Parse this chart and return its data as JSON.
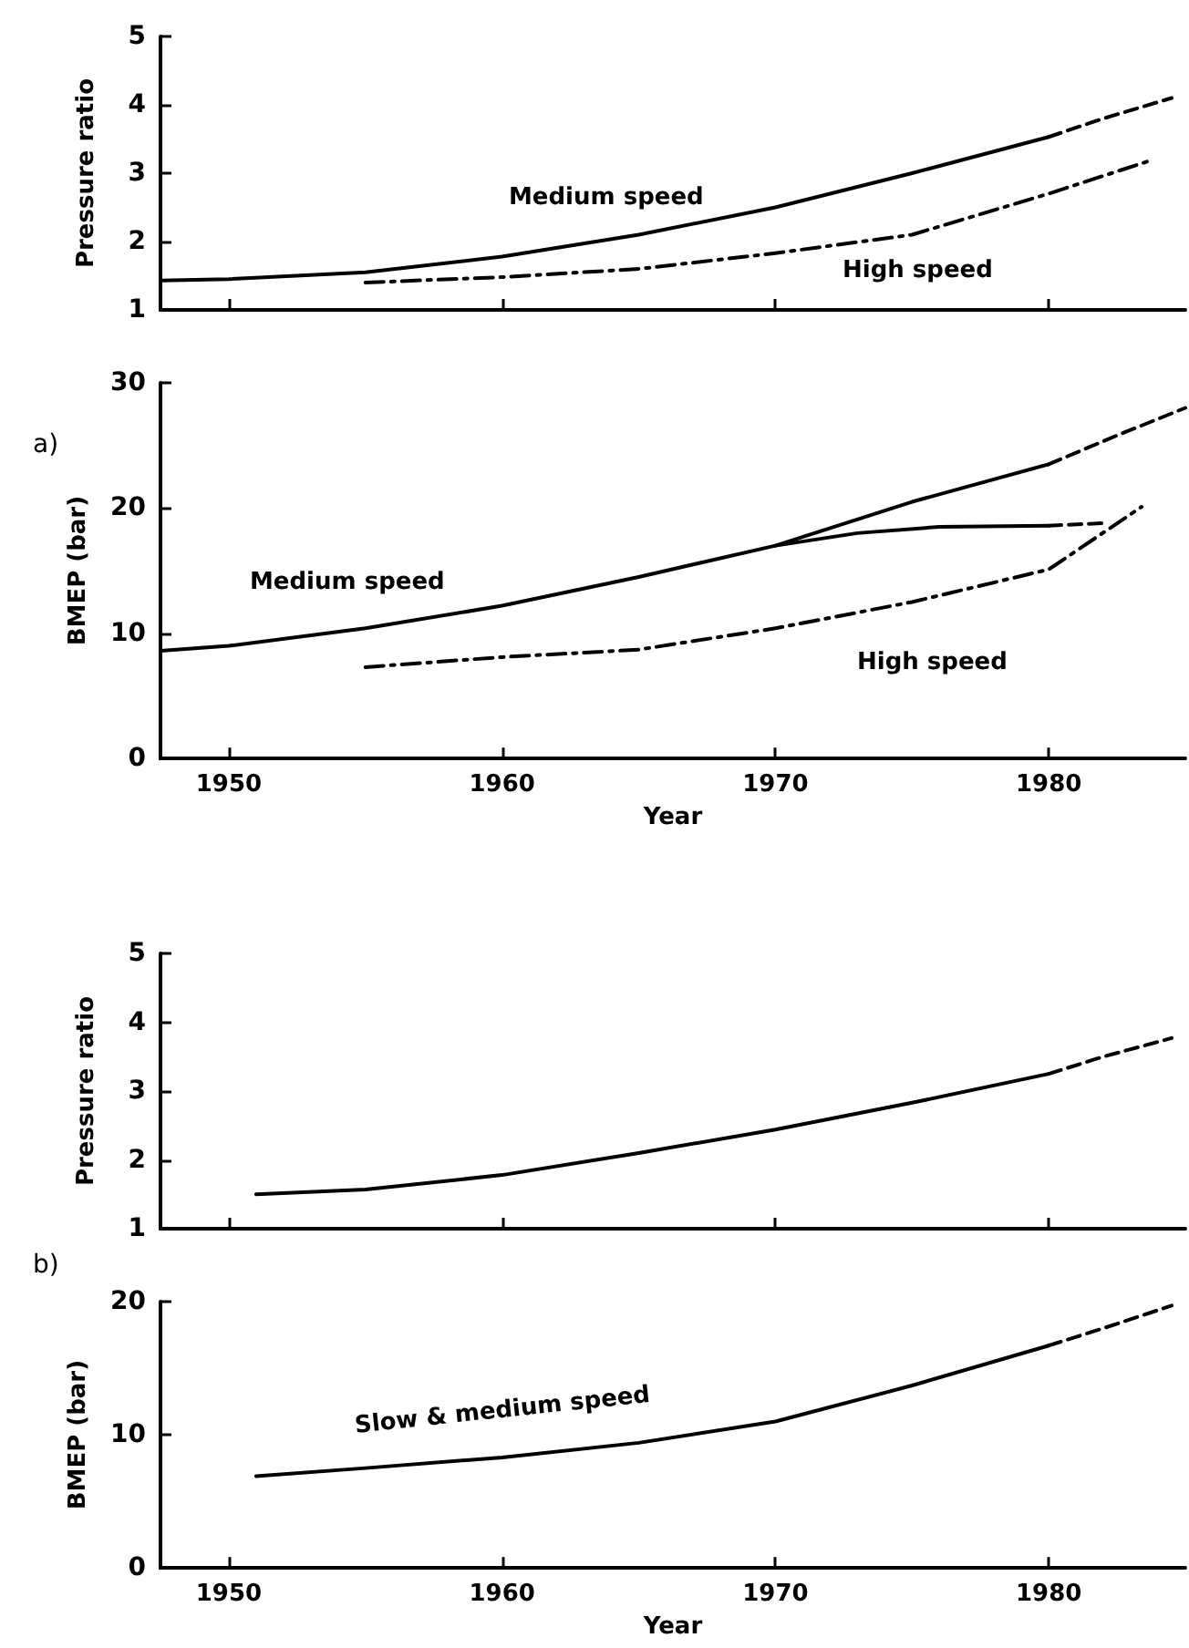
{
  "chart_data": [
    {
      "type": "line",
      "ylabel": "Pressure ratio",
      "xlim": [
        1947.5,
        1985
      ],
      "xticks": [
        1950,
        1960,
        1970,
        1980
      ],
      "ylim": [
        1,
        5
      ],
      "yticks": [
        1,
        2,
        3,
        4,
        5
      ],
      "tick_labels": "y",
      "marker": "none",
      "series": [
        {
          "name": "Medium speed",
          "color": "#000000",
          "line_style": "solid",
          "x": [
            1947.5,
            1950,
            1955,
            1960,
            1965,
            1970,
            1975,
            1980
          ],
          "values": [
            1.43,
            1.45,
            1.55,
            1.78,
            2.1,
            2.5,
            3.0,
            3.53
          ]
        },
        {
          "color": "#000000",
          "line_style": "dashed",
          "x": [
            1980,
            1982,
            1984.5
          ],
          "values": [
            3.53,
            3.8,
            4.1
          ]
        },
        {
          "name": "High speed",
          "color": "#000000",
          "line_style": "dotted",
          "x": [
            1955,
            1960,
            1965,
            1970,
            1975,
            1980,
            1983.6
          ],
          "values": [
            1.4,
            1.48,
            1.6,
            1.83,
            2.1,
            2.7,
            3.17
          ]
        }
      ]
    },
    {
      "type": "line",
      "xlabel": "Year",
      "ylabel": "BMEP (bar)",
      "xlim": [
        1947.5,
        1985
      ],
      "xticks": [
        1950,
        1960,
        1970,
        1980
      ],
      "ylim": [
        0,
        30
      ],
      "yticks": [
        0,
        10,
        20,
        30
      ],
      "marker": "none",
      "annotations": [
        "a)"
      ],
      "series": [
        {
          "name": "Medium speed",
          "color": "#000000",
          "line_style": "solid",
          "x": [
            1947.5,
            1950,
            1955,
            1960,
            1965,
            1970,
            1975,
            1980
          ],
          "values": [
            8.6,
            9.0,
            10.4,
            12.2,
            14.5,
            17.0,
            20.5,
            23.5
          ]
        },
        {
          "color": "#000000",
          "line_style": "dashed",
          "x": [
            1980,
            1982.5,
            1985
          ],
          "values": [
            23.5,
            25.8,
            28.0
          ]
        },
        {
          "color": "#000000",
          "line_style": "solid",
          "x": [
            1970,
            1973,
            1976,
            1980
          ],
          "values": [
            17.0,
            18.0,
            18.5,
            18.6
          ]
        },
        {
          "color": "#000000",
          "line_style": "dashed",
          "x": [
            1980,
            1982.1
          ],
          "values": [
            18.6,
            18.8
          ]
        },
        {
          "name": "High speed",
          "color": "#000000",
          "line_style": "dotted",
          "x": [
            1955,
            1960,
            1965,
            1970,
            1975,
            1980,
            1983.4
          ],
          "values": [
            7.3,
            8.1,
            8.7,
            10.4,
            12.5,
            15.1,
            20.1
          ]
        }
      ]
    },
    {
      "type": "line",
      "ylabel": "Pressure ratio",
      "xlim": [
        1947.5,
        1985
      ],
      "xticks": [
        1950,
        1960,
        1970,
        1980
      ],
      "ylim": [
        1,
        5
      ],
      "yticks": [
        1,
        2,
        3,
        4,
        5
      ],
      "tick_labels": "y",
      "marker": "none",
      "series": [
        {
          "color": "#000000",
          "line_style": "solid",
          "x": [
            1951,
            1955,
            1960,
            1965,
            1970,
            1975,
            1980
          ],
          "values": [
            1.5,
            1.57,
            1.78,
            2.1,
            2.44,
            2.83,
            3.25
          ]
        },
        {
          "color": "#000000",
          "line_style": "dashed",
          "x": [
            1980,
            1982,
            1984.5
          ],
          "values": [
            3.25,
            3.5,
            3.77
          ]
        }
      ]
    },
    {
      "type": "line",
      "xlabel": "Year",
      "ylabel": "BMEP (bar)",
      "xlim": [
        1947.5,
        1985
      ],
      "xticks": [
        1950,
        1960,
        1970,
        1980
      ],
      "ylim": [
        0,
        20
      ],
      "yticks": [
        0,
        10,
        20
      ],
      "marker": "none",
      "annotations": [
        "b)"
      ],
      "series": [
        {
          "name": "Slow & medium speed",
          "color": "#000000",
          "line_style": "solid",
          "x": [
            1951,
            1955,
            1960,
            1965,
            1970,
            1975,
            1980
          ],
          "values": [
            6.9,
            7.5,
            8.3,
            9.4,
            11.0,
            13.7,
            16.7
          ]
        },
        {
          "color": "#000000",
          "line_style": "dashed",
          "x": [
            1980,
            1982,
            1984.5
          ],
          "values": [
            16.7,
            18.0,
            19.7
          ]
        }
      ]
    }
  ]
}
